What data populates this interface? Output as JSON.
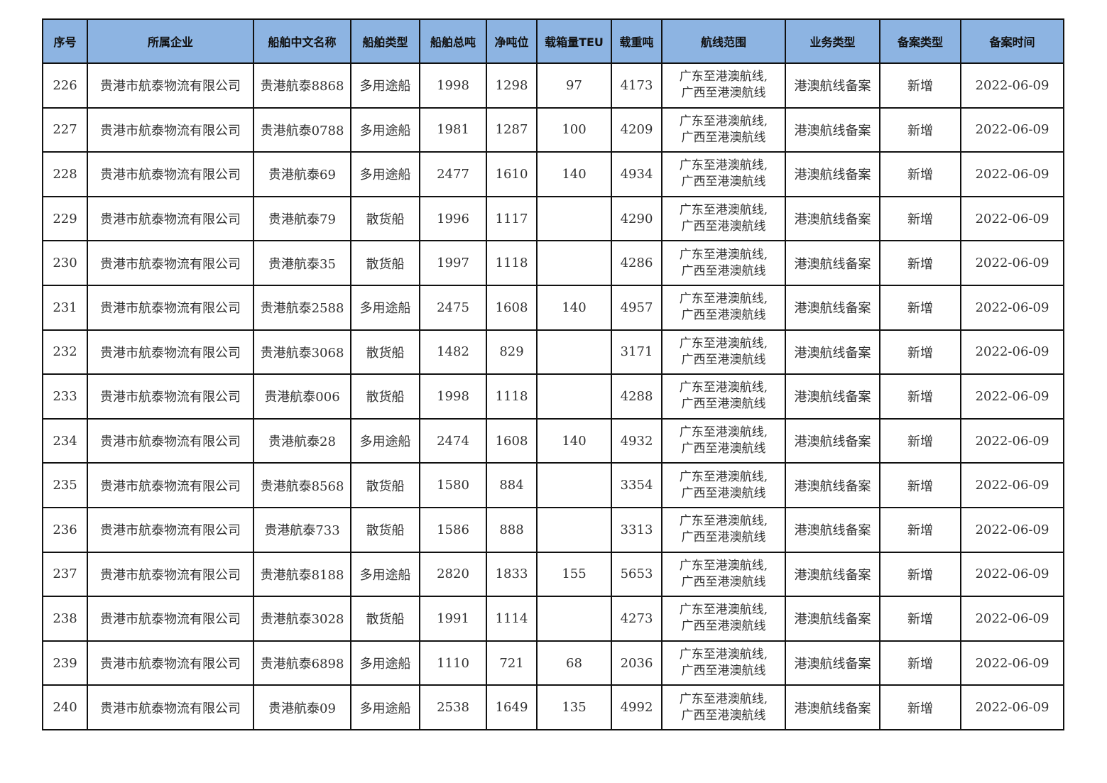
{
  "header_color": "#8DB4E2",
  "columns": [
    "序号",
    "所属企业",
    "船舶中文名称",
    "船舶类型",
    "船舶总吨",
    "净吨位",
    "载箱量TEU",
    "载重吨",
    "航线范围",
    "业务类型",
    "备案类型",
    "备案时间"
  ],
  "rows": [
    [
      "226",
      "贵港市航泰物流有限公司",
      "贵港航泰8868",
      "多用途船",
      "1998",
      "1298",
      "97",
      "4173",
      "广东至港澳航线,\n广西至港澳航线",
      "港澳航线备案",
      "新增",
      "2022-06-09"
    ],
    [
      "227",
      "贵港市航泰物流有限公司",
      "贵港航泰0788",
      "多用途船",
      "1981",
      "1287",
      "100",
      "4209",
      "广东至港澳航线,\n广西至港澳航线",
      "港澳航线备案",
      "新增",
      "2022-06-09"
    ],
    [
      "228",
      "贵港市航泰物流有限公司",
      "贵港航泰69",
      "多用途船",
      "2477",
      "1610",
      "140",
      "4934",
      "广东至港澳航线,\n广西至港澳航线",
      "港澳航线备案",
      "新增",
      "2022-06-09"
    ],
    [
      "229",
      "贵港市航泰物流有限公司",
      "贵港航泰79",
      "散货船",
      "1996",
      "1117",
      "",
      "4290",
      "广东至港澳航线,\n广西至港澳航线",
      "港澳航线备案",
      "新增",
      "2022-06-09"
    ],
    [
      "230",
      "贵港市航泰物流有限公司",
      "贵港航泰35",
      "散货船",
      "1997",
      "1118",
      "",
      "4286",
      "广东至港澳航线,\n广西至港澳航线",
      "港澳航线备案",
      "新增",
      "2022-06-09"
    ],
    [
      "231",
      "贵港市航泰物流有限公司",
      "贵港航泰2588",
      "多用途船",
      "2475",
      "1608",
      "140",
      "4957",
      "广东至港澳航线,\n广西至港澳航线",
      "港澳航线备案",
      "新增",
      "2022-06-09"
    ],
    [
      "232",
      "贵港市航泰物流有限公司",
      "贵港航泰3068",
      "散货船",
      "1482",
      "829",
      "",
      "3171",
      "广东至港澳航线,\n广西至港澳航线",
      "港澳航线备案",
      "新增",
      "2022-06-09"
    ],
    [
      "233",
      "贵港市航泰物流有限公司",
      "贵港航泰006",
      "散货船",
      "1998",
      "1118",
      "",
      "4288",
      "广东至港澳航线,\n广西至港澳航线",
      "港澳航线备案",
      "新增",
      "2022-06-09"
    ],
    [
      "234",
      "贵港市航泰物流有限公司",
      "贵港航泰28",
      "多用途船",
      "2474",
      "1608",
      "140",
      "4932",
      "广东至港澳航线,\n广西至港澳航线",
      "港澳航线备案",
      "新增",
      "2022-06-09"
    ],
    [
      "235",
      "贵港市航泰物流有限公司",
      "贵港航泰8568",
      "散货船",
      "1580",
      "884",
      "",
      "3354",
      "广东至港澳航线,\n广西至港澳航线",
      "港澳航线备案",
      "新增",
      "2022-06-09"
    ],
    [
      "236",
      "贵港市航泰物流有限公司",
      "贵港航泰733",
      "散货船",
      "1586",
      "888",
      "",
      "3313",
      "广东至港澳航线,\n广西至港澳航线",
      "港澳航线备案",
      "新增",
      "2022-06-09"
    ],
    [
      "237",
      "贵港市航泰物流有限公司",
      "贵港航泰8188",
      "多用途船",
      "2820",
      "1833",
      "155",
      "5653",
      "广东至港澳航线,\n广西至港澳航线",
      "港澳航线备案",
      "新增",
      "2022-06-09"
    ],
    [
      "238",
      "贵港市航泰物流有限公司",
      "贵港航泰3028",
      "散货船",
      "1991",
      "1114",
      "",
      "4273",
      "广东至港澳航线,\n广西至港澳航线",
      "港澳航线备案",
      "新增",
      "2022-06-09"
    ],
    [
      "239",
      "贵港市航泰物流有限公司",
      "贵港航泰6898",
      "多用途船",
      "1110",
      "721",
      "68",
      "2036",
      "广东至港澳航线,\n广西至港澳航线",
      "港澳航线备案",
      "新增",
      "2022-06-09"
    ],
    [
      "240",
      "贵港市航泰物流有限公司",
      "贵港航泰09",
      "多用途船",
      "2538",
      "1649",
      "135",
      "4992",
      "广东至港澳航线,\n广西至港澳航线",
      "港澳航线备案",
      "新增",
      "2022-06-09"
    ]
  ]
}
